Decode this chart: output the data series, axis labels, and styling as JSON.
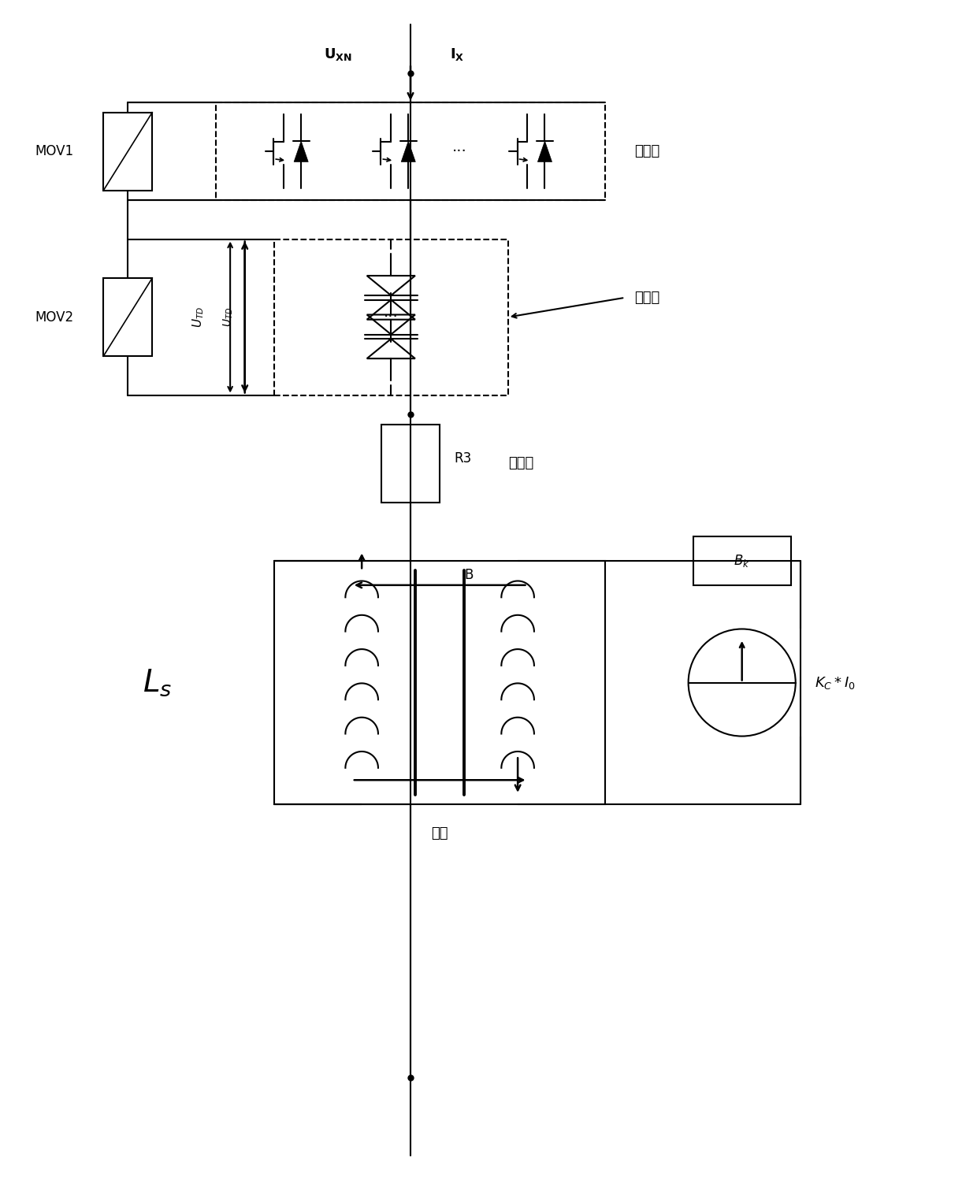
{
  "bg_color": "#ffffff",
  "line_color": "#000000",
  "lw": 1.5,
  "tlw": 2.8,
  "figsize": [
    12.4,
    14.98
  ],
  "dpi": 100,
  "labels": {
    "MOV1": "MOV1",
    "MOV2": "MOV2",
    "switch_level": "开关级",
    "trigger_level": "触发级",
    "energy_level": "耗能级",
    "R3": "R3",
    "B_label": "B",
    "Bk_label": "Bₖ",
    "iron_core": "铁心",
    "KC_I0": "Kₙ*I₀"
  }
}
